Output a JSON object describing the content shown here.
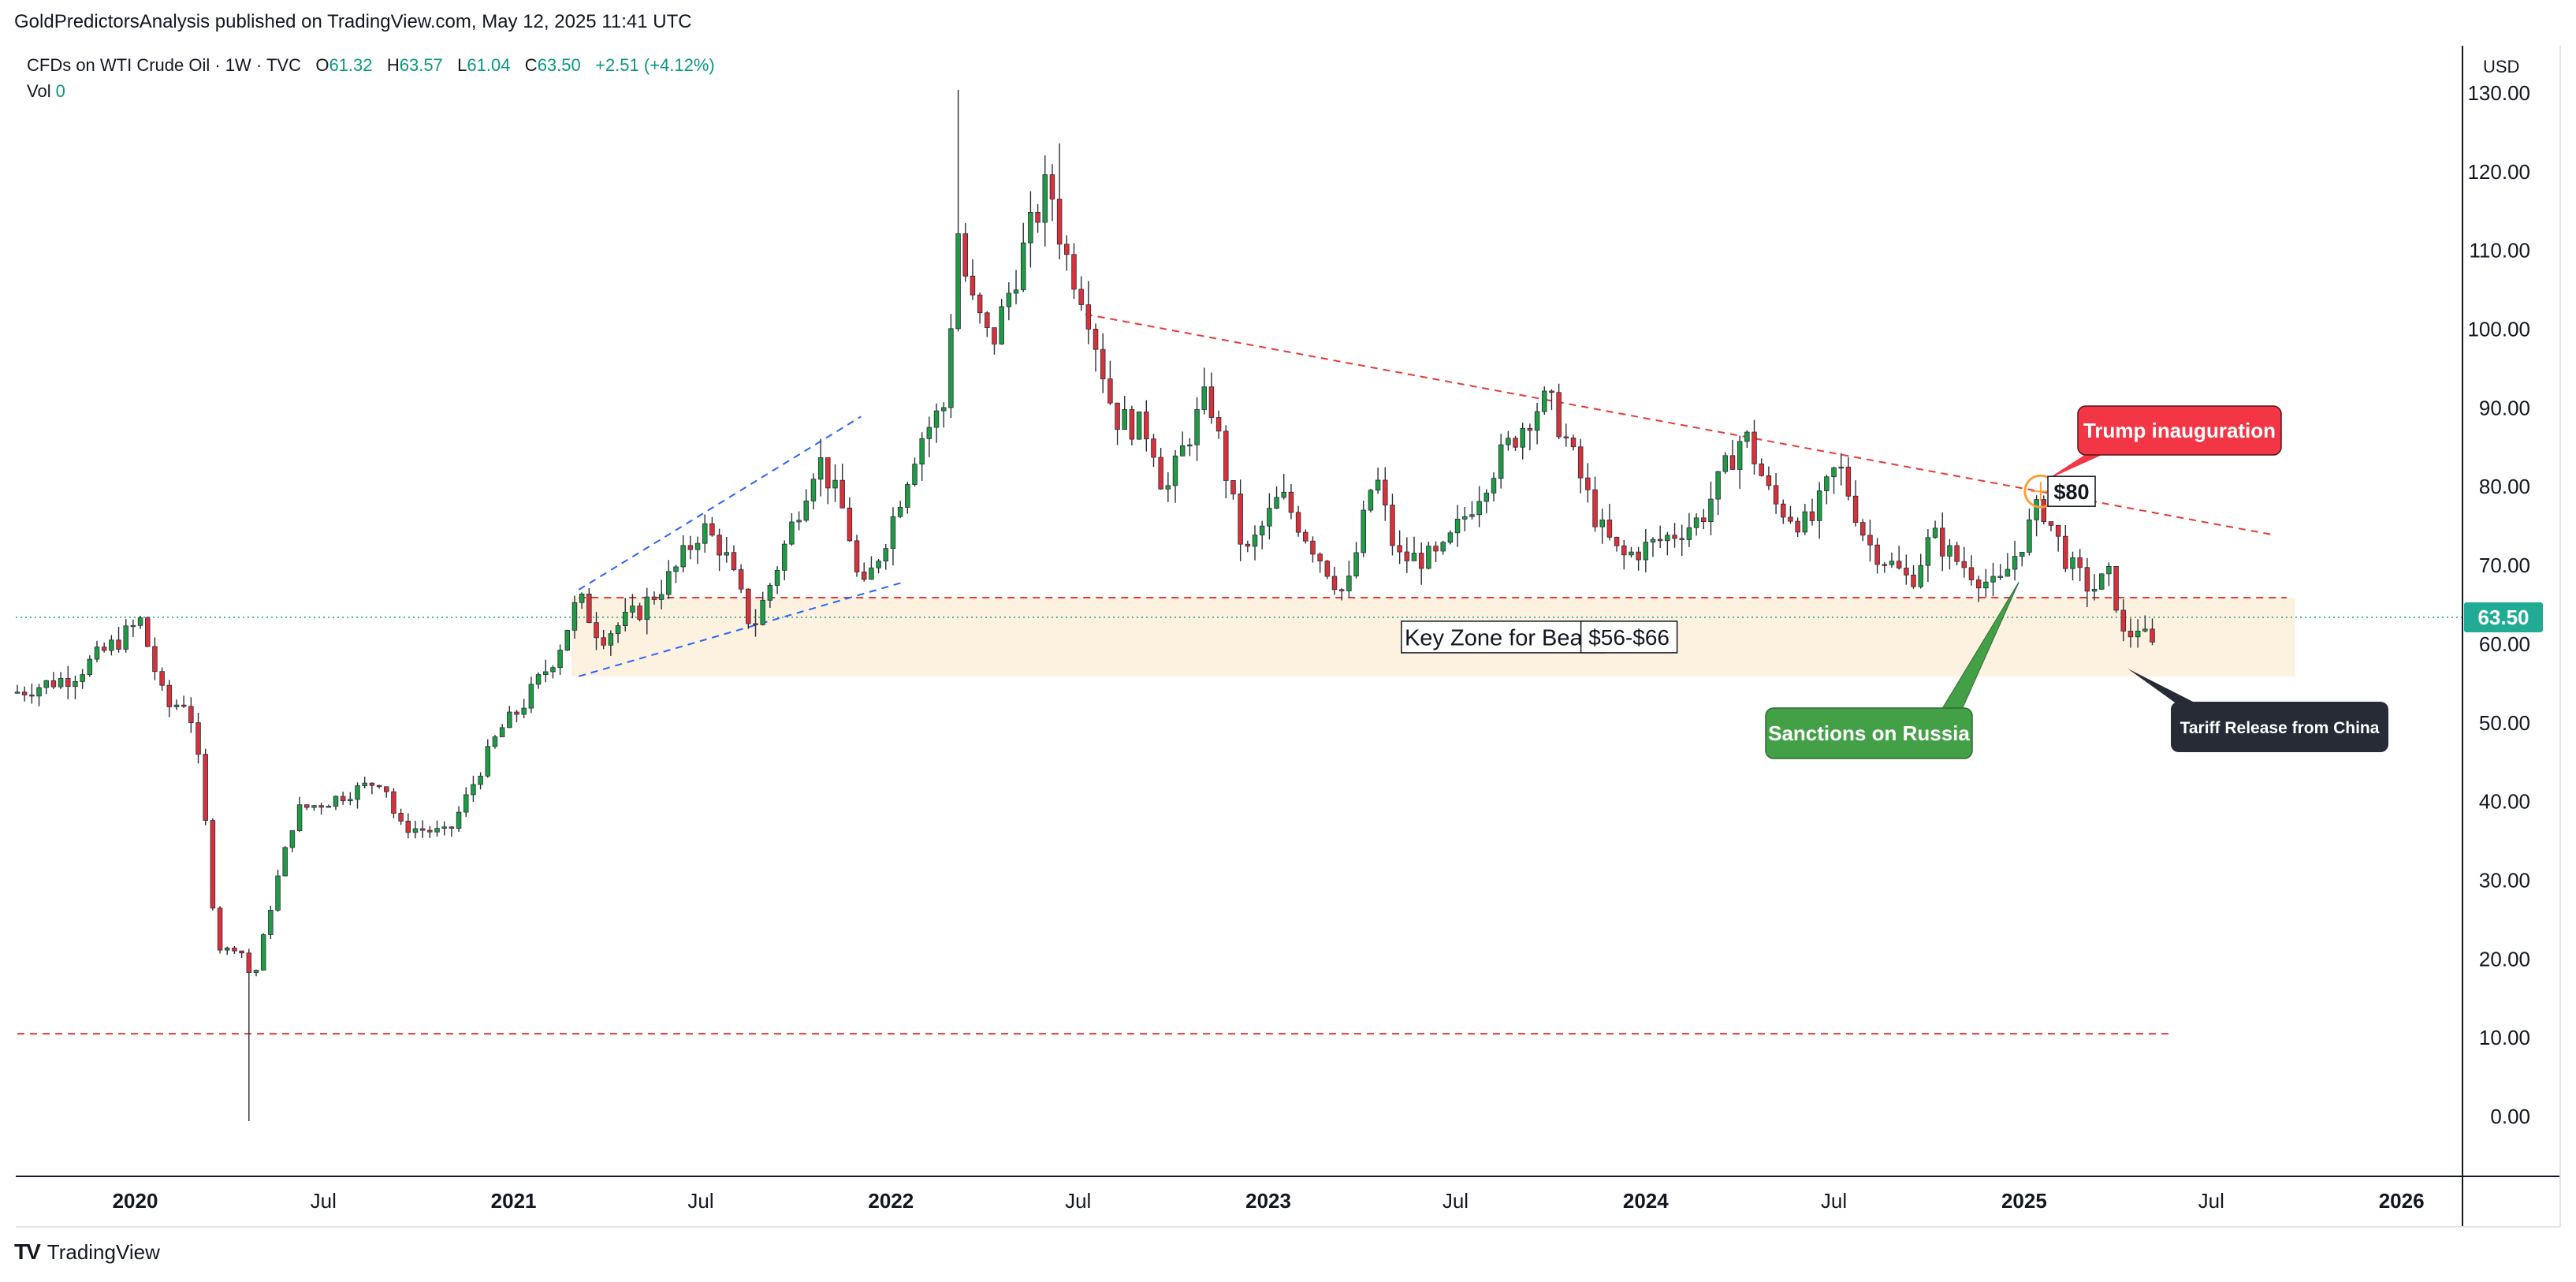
{
  "header": {
    "publish_line": "GoldPredictorsAnalysis published on TradingView.com, May 12, 2025 11:41 UTC"
  },
  "legend": {
    "symbol": "CFDs on WTI Crude Oil · 1W · TVC",
    "o_label": "O",
    "o_value": "61.32",
    "h_label": "H",
    "h_value": "63.57",
    "l_label": "L",
    "l_value": "61.04",
    "c_label": "C",
    "c_value": "63.50",
    "change": "+2.51 (+4.12%)",
    "vol_label": "Vol",
    "vol_value": "0"
  },
  "currency": "USD",
  "footer": {
    "brand": "TradingView",
    "logo_mark": "TV"
  },
  "colors": {
    "up": "#26a69a",
    "up_fill": "#1e9c43",
    "down": "#d8313a",
    "wick": "#2a2e39",
    "zone": "#fdf0dd",
    "resistance": "#e53935",
    "channel": "#2962ff",
    "price_badge": "#22ab94",
    "trump": "#f23645",
    "sanctions": "#43a047",
    "tariff": "#262b35"
  },
  "chart_data": {
    "type": "candlestick",
    "title": "",
    "y_axis": {
      "min": -7,
      "max": 131,
      "ticks": [
        0,
        10,
        20,
        30,
        40,
        50,
        60,
        70,
        80,
        90,
        100,
        110,
        120,
        130
      ],
      "tick_labels": [
        "0.00",
        "10.00",
        "20.00",
        "30.00",
        "40.00",
        "50.00",
        "60.00",
        "70.00",
        "80.00",
        "90.00",
        "100.00",
        "110.00",
        "120.00",
        "130.00"
      ]
    },
    "x_axis": {
      "tick_labels": [
        {
          "label": "2020",
          "bold": true,
          "date": "2020-01-01"
        },
        {
          "label": "Jul",
          "bold": false,
          "date": "2020-07-01"
        },
        {
          "label": "2021",
          "bold": true,
          "date": "2021-01-01"
        },
        {
          "label": "Jul",
          "bold": false,
          "date": "2021-07-01"
        },
        {
          "label": "2022",
          "bold": true,
          "date": "2022-01-01"
        },
        {
          "label": "Jul",
          "bold": false,
          "date": "2022-07-01"
        },
        {
          "label": "2023",
          "bold": true,
          "date": "2023-01-01"
        },
        {
          "label": "Jul",
          "bold": false,
          "date": "2023-07-01"
        },
        {
          "label": "2024",
          "bold": true,
          "date": "2024-01-01"
        },
        {
          "label": "Jul",
          "bold": false,
          "date": "2024-07-01"
        },
        {
          "label": "2025",
          "bold": true,
          "date": "2025-01-01"
        },
        {
          "label": "Jul",
          "bold": false,
          "date": "2025-07-01"
        },
        {
          "label": "2026",
          "bold": true,
          "date": "2026-01-01"
        }
      ]
    },
    "price_path": [
      {
        "date": "2019-09-09",
        "close": 54
      },
      {
        "date": "2019-11-01",
        "close": 56
      },
      {
        "date": "2019-12-20",
        "close": 61
      },
      {
        "date": "2020-01-06",
        "close": 63
      },
      {
        "date": "2020-01-31",
        "close": 52
      },
      {
        "date": "2020-02-21",
        "close": 53
      },
      {
        "date": "2020-03-06",
        "close": 42
      },
      {
        "date": "2020-03-13",
        "close": 31
      },
      {
        "date": "2020-03-20",
        "close": 22
      },
      {
        "date": "2020-03-27",
        "close": 21
      },
      {
        "date": "2020-04-10",
        "close": 22
      },
      {
        "date": "2020-04-24",
        "close": 17
      },
      {
        "date": "2020-05-15",
        "close": 29
      },
      {
        "date": "2020-06-05",
        "close": 39
      },
      {
        "date": "2020-07-03",
        "close": 40
      },
      {
        "date": "2020-08-28",
        "close": 43
      },
      {
        "date": "2020-09-11",
        "close": 37
      },
      {
        "date": "2020-10-30",
        "close": 36
      },
      {
        "date": "2020-12-18",
        "close": 49
      },
      {
        "date": "2021-01-08",
        "close": 52
      },
      {
        "date": "2021-02-12",
        "close": 59
      },
      {
        "date": "2021-03-05",
        "close": 66
      },
      {
        "date": "2021-03-26",
        "close": 61
      },
      {
        "date": "2021-04-30",
        "close": 64
      },
      {
        "date": "2021-06-04",
        "close": 69
      },
      {
        "date": "2021-07-02",
        "close": 75
      },
      {
        "date": "2021-07-23",
        "close": 72
      },
      {
        "date": "2021-08-20",
        "close": 62
      },
      {
        "date": "2021-09-10",
        "close": 69
      },
      {
        "date": "2021-10-08",
        "close": 79
      },
      {
        "date": "2021-10-22",
        "close": 84
      },
      {
        "date": "2021-11-19",
        "close": 76
      },
      {
        "date": "2021-12-03",
        "close": 66
      },
      {
        "date": "2021-12-31",
        "close": 75
      },
      {
        "date": "2022-01-28",
        "close": 86
      },
      {
        "date": "2022-02-25",
        "close": 91
      },
      {
        "date": "2022-03-04",
        "close": 115
      },
      {
        "date": "2022-03-11",
        "close": 109
      },
      {
        "date": "2022-03-18",
        "close": 104
      },
      {
        "date": "2022-04-08",
        "close": 98
      },
      {
        "date": "2022-05-06",
        "close": 109
      },
      {
        "date": "2022-06-03",
        "close": 119
      },
      {
        "date": "2022-06-17",
        "close": 110
      },
      {
        "date": "2022-07-08",
        "close": 104
      },
      {
        "date": "2022-08-05",
        "close": 89
      },
      {
        "date": "2022-09-09",
        "close": 87
      },
      {
        "date": "2022-09-23",
        "close": 79
      },
      {
        "date": "2022-10-14",
        "close": 86
      },
      {
        "date": "2022-11-04",
        "close": 92
      },
      {
        "date": "2022-12-09",
        "close": 71
      },
      {
        "date": "2023-01-13",
        "close": 79
      },
      {
        "date": "2023-03-17",
        "close": 66
      },
      {
        "date": "2023-04-14",
        "close": 82
      },
      {
        "date": "2023-05-05",
        "close": 71
      },
      {
        "date": "2023-06-16",
        "close": 71
      },
      {
        "date": "2023-08-04",
        "close": 82
      },
      {
        "date": "2023-09-15",
        "close": 90
      },
      {
        "date": "2023-09-29",
        "close": 91
      },
      {
        "date": "2023-10-13",
        "close": 87
      },
      {
        "date": "2023-11-17",
        "close": 75
      },
      {
        "date": "2023-12-08",
        "close": 71
      },
      {
        "date": "2024-01-12",
        "close": 73
      },
      {
        "date": "2024-02-23",
        "close": 76
      },
      {
        "date": "2024-04-05",
        "close": 87
      },
      {
        "date": "2024-05-03",
        "close": 78
      },
      {
        "date": "2024-06-07",
        "close": 75
      },
      {
        "date": "2024-07-05",
        "close": 83
      },
      {
        "date": "2024-08-02",
        "close": 73
      },
      {
        "date": "2024-09-13",
        "close": 68
      },
      {
        "date": "2024-10-04",
        "close": 74
      },
      {
        "date": "2024-10-25",
        "close": 71
      },
      {
        "date": "2024-12-06",
        "close": 67
      },
      {
        "date": "2025-01-10",
        "close": 76
      },
      {
        "date": "2025-01-17",
        "close": 78
      },
      {
        "date": "2025-02-14",
        "close": 70
      },
      {
        "date": "2025-03-07",
        "close": 67
      },
      {
        "date": "2025-03-28",
        "close": 69
      },
      {
        "date": "2025-04-04",
        "close": 61
      },
      {
        "date": "2025-04-11",
        "close": 61
      },
      {
        "date": "2025-04-25",
        "close": 63
      },
      {
        "date": "2025-05-02",
        "close": 58
      },
      {
        "date": "2025-05-09",
        "close": 63.5
      }
    ],
    "extreme_wicks": [
      {
        "date": "2020-04-17",
        "low": -0.5
      },
      {
        "date": "2022-03-07",
        "high": 130.5
      },
      {
        "date": "2022-06-10",
        "high": 123.7
      }
    ],
    "last_price": {
      "value": 63.5,
      "label": "63.50"
    },
    "key_zone": {
      "low": 56,
      "high": 66,
      "from": "2021-02-26",
      "to": "2025-09-20"
    },
    "lines": [
      {
        "name": "resistance-trendline",
        "from": {
          "date": "2022-07-08",
          "price": 102
        },
        "to": {
          "date": "2025-08-29",
          "price": 74
        },
        "style": "dashed"
      },
      {
        "name": "zone-top-line",
        "from": {
          "date": "2021-03-05",
          "price": 66
        },
        "to": {
          "date": "2025-09-12",
          "price": 66
        },
        "style": "dashed"
      },
      {
        "name": "channel-upper",
        "from": {
          "date": "2021-03-05",
          "price": 67
        },
        "to": {
          "date": "2021-12-03",
          "price": 89
        },
        "style": "dashed"
      },
      {
        "name": "channel-lower",
        "from": {
          "date": "2021-03-05",
          "price": 56
        },
        "to": {
          "date": "2022-01-14",
          "price": 68
        },
        "style": "dashed"
      },
      {
        "name": "low-level-line",
        "from": {
          "date": "2019-09-09",
          "price": 10.6
        },
        "to": {
          "date": "2025-05-23",
          "price": 10.6
        },
        "style": "dashed"
      }
    ],
    "annotations": [
      {
        "name": "key-zone-label",
        "text": "Key Zone for Bears",
        "date": "2023-05-12",
        "price": 61
      },
      {
        "name": "zone-range-label",
        "text": "$56-$66",
        "date": "2023-11-10",
        "price": 61
      },
      {
        "name": "eighty-label",
        "text": "$80",
        "date": "2025-01-24",
        "price": 79.5
      },
      {
        "name": "trump-callout",
        "text": "Trump inauguration",
        "date": "2025-01-20",
        "price": 79.5
      },
      {
        "name": "sanctions-callout",
        "text": "Sanctions on Russia",
        "date": "2024-12-30",
        "price": 68
      },
      {
        "name": "tariff-callout",
        "text": "Tariff Release from China",
        "date": "2025-04-11",
        "price": 57
      }
    ]
  }
}
